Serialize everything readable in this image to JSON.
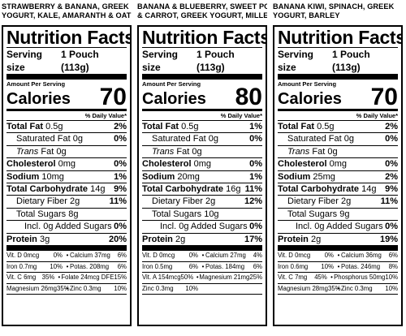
{
  "panels": [
    {
      "flavor_line1": "STRAWBERRY & BANANA, GREEK",
      "flavor_line2": "YOGURT, KALE, AMARANTH & OAT",
      "title": "Nutrition Facts",
      "serving_label": "Serving size",
      "serving_value": "1 Pouch (113g)",
      "amount_per_serving": "Amount Per Serving",
      "calories_label": "Calories",
      "calories_value": "70",
      "dv_header": "% Daily Value*",
      "nutrients": [
        {
          "name_bold": "Total Fat",
          "amount": "0.5g",
          "pct": "2%",
          "indent": 0
        },
        {
          "name_bold": "",
          "name": "Saturated Fat 0g",
          "pct": "0%",
          "indent": 1
        },
        {
          "name_italic": "Trans",
          "name": "Fat 0g",
          "pct": "",
          "indent": 1
        },
        {
          "name_bold": "Cholesterol",
          "amount": "0mg",
          "pct": "0%",
          "indent": 0
        },
        {
          "name_bold": "Sodium",
          "amount": "10mg",
          "pct": "1%",
          "indent": 0
        },
        {
          "name_bold": "Total Carbohydrate",
          "amount": "14g",
          "pct": "9%",
          "indent": 0
        },
        {
          "name_bold": "",
          "name": "Dietary Fiber 2g",
          "pct": "11%",
          "indent": 1
        },
        {
          "name_bold": "",
          "name": "Total Sugars 8g",
          "pct": "",
          "indent": 1
        },
        {
          "name_bold": "",
          "name": "Incl. 0g Added Sugars",
          "pct": "0%",
          "indent": 2
        },
        {
          "name_bold": "Protein",
          "amount": "3g",
          "pct": "20%",
          "indent": 0
        }
      ],
      "minerals": [
        [
          "Vit. D 0mcg",
          "0%",
          "Calcium 37mg",
          "6%"
        ],
        [
          "Iron 0.7mg",
          "10%",
          "Potas. 208mg",
          "6%"
        ],
        [
          "Vit. C 6mg",
          "35%",
          "Folate 24mcg DFE",
          "15%"
        ],
        [
          "Magnesium 26mg",
          "35%",
          "Zinc 0.3mg",
          "10%"
        ]
      ]
    },
    {
      "flavor_line1": "BANANA & BLUEBERRY, SWEET POTATO",
      "flavor_line2": "& CARROT, GREEK YOGURT, MILLET",
      "title": "Nutrition Facts",
      "serving_label": "Serving size",
      "serving_value": "1 Pouch (113g)",
      "amount_per_serving": "Amount Per Serving",
      "calories_label": "Calories",
      "calories_value": "80",
      "dv_header": "% Daily Value*",
      "nutrients": [
        {
          "name_bold": "Total Fat",
          "amount": "0.5g",
          "pct": "1%",
          "indent": 0
        },
        {
          "name_bold": "",
          "name": "Saturated Fat 0g",
          "pct": "0%",
          "indent": 1
        },
        {
          "name_italic": "Trans",
          "name": "Fat 0g",
          "pct": "",
          "indent": 1
        },
        {
          "name_bold": "Cholesterol",
          "amount": "0mg",
          "pct": "0%",
          "indent": 0
        },
        {
          "name_bold": "Sodium",
          "amount": "20mg",
          "pct": "1%",
          "indent": 0
        },
        {
          "name_bold": "Total Carbohydrate",
          "amount": "16g",
          "pct": "11%",
          "indent": 0
        },
        {
          "name_bold": "",
          "name": "Dietary Fiber 2g",
          "pct": "12%",
          "indent": 1
        },
        {
          "name_bold": "",
          "name": "Total Sugars 10g",
          "pct": "",
          "indent": 1
        },
        {
          "name_bold": "",
          "name": "Incl. 0g Added Sugars",
          "pct": "0%",
          "indent": 2
        },
        {
          "name_bold": "Protein",
          "amount": "2g",
          "pct": "17%",
          "indent": 0
        }
      ],
      "minerals": [
        [
          "Vit. D 0mcg",
          "0%",
          "Calcium 27mg",
          "4%"
        ],
        [
          "Iron 0.5mg",
          "6%",
          "Potas. 184mg",
          "6%"
        ],
        [
          "Vit. A 154mcg",
          "50%",
          "Magnesium 21mg",
          "25%"
        ],
        [
          "Zinc 0.3mg",
          "10%",
          "",
          ""
        ]
      ]
    },
    {
      "flavor_line1": "BANANA KIWI, SPINACH, GREEK",
      "flavor_line2": "YOGURT, BARLEY",
      "title": "Nutrition Facts",
      "serving_label": "Serving size",
      "serving_value": "1 Pouch (113g)",
      "amount_per_serving": "Amount Per Serving",
      "calories_label": "Calories",
      "calories_value": "70",
      "dv_header": "% Daily Value*",
      "nutrients": [
        {
          "name_bold": "Total Fat",
          "amount": "0.5g",
          "pct": "2%",
          "indent": 0
        },
        {
          "name_bold": "",
          "name": "Saturated Fat 0g",
          "pct": "0%",
          "indent": 1
        },
        {
          "name_italic": "Trans",
          "name": "Fat 0g",
          "pct": "",
          "indent": 1
        },
        {
          "name_bold": "Cholesterol",
          "amount": "0mg",
          "pct": "0%",
          "indent": 0
        },
        {
          "name_bold": "Sodium",
          "amount": "25mg",
          "pct": "2%",
          "indent": 0
        },
        {
          "name_bold": "Total Carbohydrate",
          "amount": "14g",
          "pct": "9%",
          "indent": 0
        },
        {
          "name_bold": "",
          "name": "Dietary Fiber 2g",
          "pct": "11%",
          "indent": 1
        },
        {
          "name_bold": "",
          "name": "Total Sugars 9g",
          "pct": "",
          "indent": 1
        },
        {
          "name_bold": "",
          "name": "Incl. 0g Added Sugars",
          "pct": "0%",
          "indent": 2
        },
        {
          "name_bold": "Protein",
          "amount": "2g",
          "pct": "19%",
          "indent": 0
        }
      ],
      "minerals": [
        [
          "Vit. D 0mcg",
          "0%",
          "Calcium 36mg",
          "6%"
        ],
        [
          "Iron 0.6mg",
          "10%",
          "Potas. 246mg",
          "8%"
        ],
        [
          "Vit. C 7mg",
          "45%",
          "Phosphorus 50mg",
          "10%"
        ],
        [
          "Magnesium 28mg",
          "35%",
          "Zinc 0.3mg",
          "10%"
        ]
      ]
    }
  ]
}
